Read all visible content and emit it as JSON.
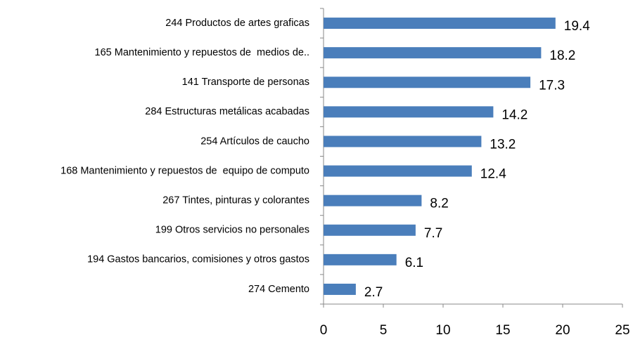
{
  "chart_data": {
    "type": "hbar",
    "categories": [
      "244 Productos de artes graficas",
      "165 Mantenimiento y repuestos de  medios de..",
      "141 Transporte de personas",
      "284 Estructuras metálicas acabadas",
      "254 Artículos de caucho",
      "168 Mantenimiento y repuestos de  equipo de computo",
      "267 Tintes, pinturas y colorantes",
      "199 Otros servicios no personales",
      "194 Gastos bancarios, comisiones y otros gastos",
      "274 Cemento"
    ],
    "values": [
      19.4,
      18.2,
      17.3,
      14.2,
      13.2,
      12.4,
      8.2,
      7.7,
      6.1,
      2.7
    ],
    "color": "#4a7ebb",
    "xlim": [
      0,
      25
    ],
    "xticks": [
      0,
      5,
      10,
      15,
      20,
      25
    ],
    "grid": false
  }
}
